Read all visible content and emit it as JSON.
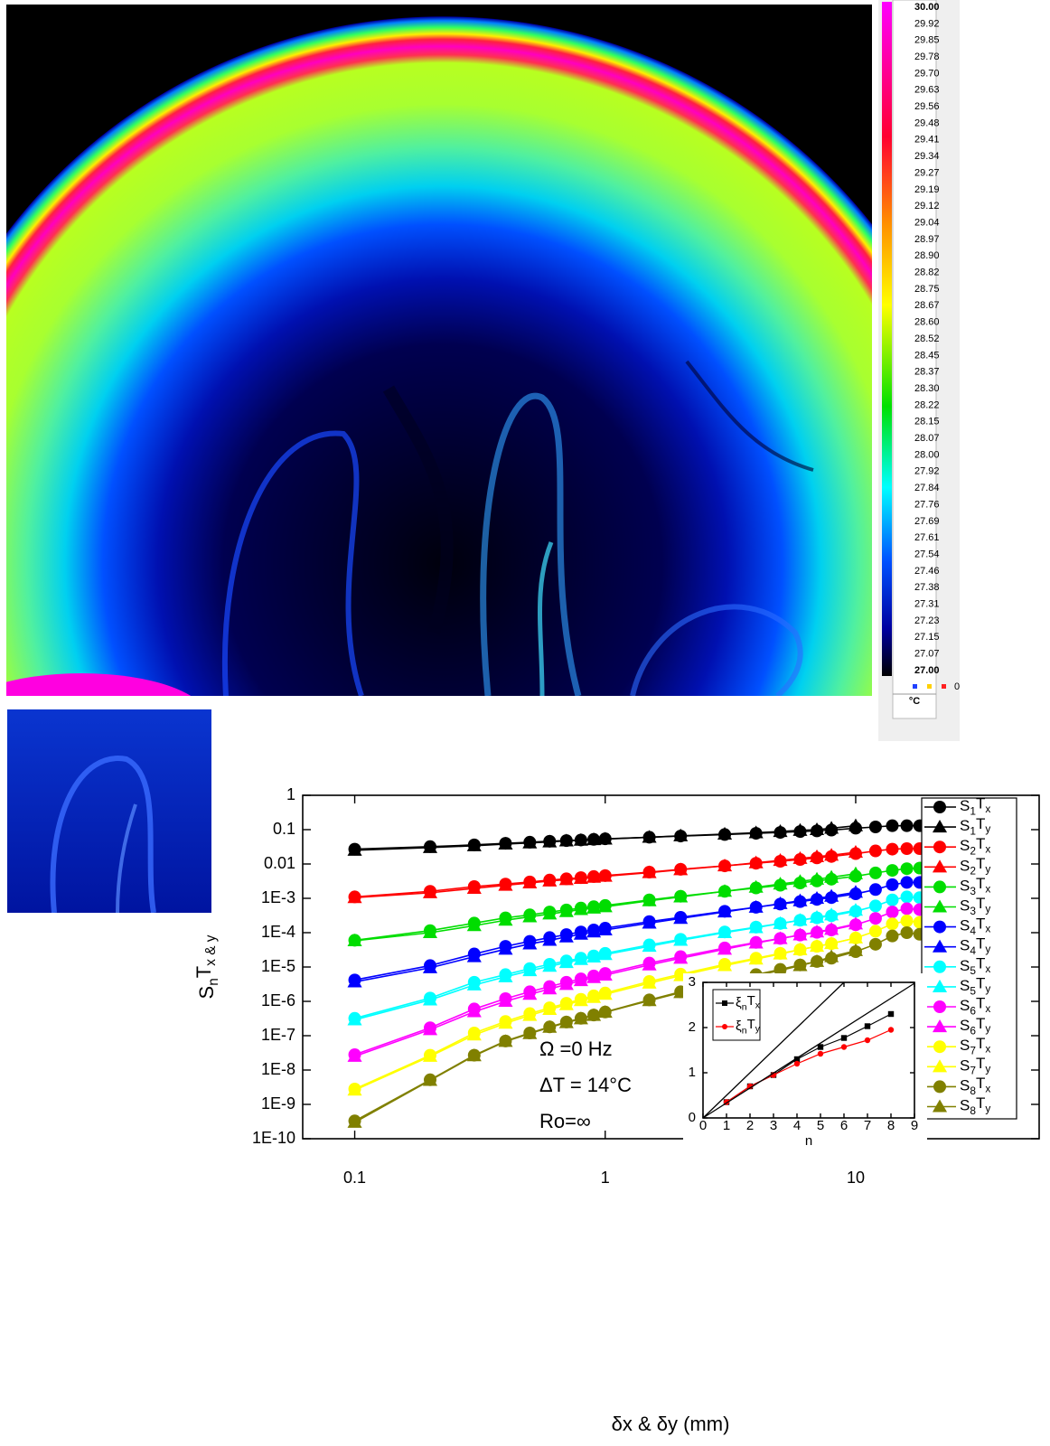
{
  "thermal_image": {
    "colorbar": {
      "labels": [
        "30.00",
        "29.92",
        "29.85",
        "29.78",
        "29.70",
        "29.63",
        "29.56",
        "29.48",
        "29.41",
        "29.34",
        "29.27",
        "29.19",
        "29.12",
        "29.04",
        "28.97",
        "28.90",
        "28.82",
        "28.75",
        "28.67",
        "28.60",
        "28.52",
        "28.45",
        "28.37",
        "28.30",
        "28.22",
        "28.15",
        "28.07",
        "28.00",
        "27.92",
        "27.84",
        "27.76",
        "27.69",
        "27.61",
        "27.54",
        "27.46",
        "27.38",
        "27.31",
        "27.23",
        "27.15",
        "27.07",
        "27.00"
      ],
      "zero_label": "0",
      "unit": "°C"
    }
  },
  "chart_data": [
    {
      "type": "line",
      "xlabel": "δx & δy (mm)",
      "ylabel": "SnTx & y",
      "xscale": "log",
      "yscale": "log",
      "xlim": [
        0.062,
        54
      ],
      "ylim": [
        1e-10,
        1
      ],
      "xticks": [
        0.1,
        1,
        10
      ],
      "yticks": [
        1,
        0.1,
        0.01,
        {
          "value": 0.001,
          "label": "1E-3"
        },
        {
          "value": 0.0001,
          "label": "1E-4"
        },
        {
          "value": 1e-05,
          "label": "1E-5"
        },
        {
          "value": 1e-06,
          "label": "1E-6"
        },
        {
          "value": 1e-07,
          "label": "1E-7"
        },
        {
          "value": 1e-08,
          "label": "1E-8"
        },
        {
          "value": 1e-09,
          "label": "1E-9"
        },
        {
          "value": 1e-10,
          "label": "1E-10"
        }
      ],
      "annotations": [
        "Ω =0 Hz",
        "ΔT = 14°C",
        "Ro=∞"
      ],
      "legend": "right",
      "x": [
        0.1,
        0.2,
        0.3,
        0.4,
        0.5,
        0.6,
        0.7,
        0.8,
        0.9,
        1,
        1.5,
        2,
        3,
        4,
        5,
        6,
        7,
        8,
        10,
        12,
        14,
        16,
        18,
        20
      ],
      "series": [
        {
          "name": "S1Tx",
          "color": "#000000",
          "marker": "circle",
          "values": [
            0.027,
            0.032,
            0.036,
            0.04,
            0.043,
            0.046,
            0.048,
            0.05,
            0.052,
            0.054,
            0.06,
            0.065,
            0.072,
            0.078,
            0.083,
            0.088,
            0.092,
            0.097,
            0.11,
            0.12,
            0.13,
            0.13,
            0.13,
            0.125
          ]
        },
        {
          "name": "S1Ty",
          "color": "#000000",
          "marker": "triangle",
          "values": [
            0.025,
            0.03,
            0.034,
            0.038,
            0.041,
            0.044,
            0.047,
            0.049,
            0.051,
            0.053,
            0.06,
            0.066,
            0.074,
            0.081,
            0.088,
            0.095,
            0.1,
            0.11,
            0.13,
            null,
            null,
            null,
            null,
            null
          ]
        },
        {
          "name": "S2Tx",
          "color": "#ff0000",
          "marker": "circle",
          "values": [
            0.0011,
            0.0016,
            0.0022,
            0.0026,
            0.003,
            0.0034,
            0.0037,
            0.004,
            0.0043,
            0.0046,
            0.0058,
            0.007,
            0.0088,
            0.0105,
            0.012,
            0.0135,
            0.015,
            0.0165,
            0.02,
            0.024,
            0.027,
            0.028,
            0.028,
            0.027
          ]
        },
        {
          "name": "S2Ty",
          "color": "#ff0000",
          "marker": "triangle",
          "values": [
            0.00105,
            0.00145,
            0.00195,
            0.0024,
            0.0028,
            0.0032,
            0.0035,
            0.0038,
            0.0041,
            0.0044,
            0.0056,
            0.0068,
            0.0088,
            0.0108,
            0.0127,
            0.0145,
            0.0163,
            0.018,
            0.022,
            null,
            null,
            null,
            null,
            null
          ]
        },
        {
          "name": "S3Tx",
          "color": "#00dd00",
          "marker": "circle",
          "values": [
            6e-05,
            0.000115,
            0.00019,
            0.00027,
            0.00033,
            0.0004,
            0.00046,
            0.00052,
            0.00057,
            0.00062,
            0.0009,
            0.00115,
            0.0016,
            0.002,
            0.0024,
            0.0028,
            0.0032,
            0.0036,
            0.0044,
            0.0055,
            0.0065,
            0.0073,
            0.0076,
            0.0073
          ]
        },
        {
          "name": "S3Ty",
          "color": "#00dd00",
          "marker": "triangle",
          "values": [
            5.8e-05,
            0.0001,
            0.00016,
            0.00023,
            0.00029,
            0.00035,
            0.00041,
            0.00047,
            0.00052,
            0.00057,
            0.00085,
            0.0011,
            0.0016,
            0.0021,
            0.0026,
            0.0031,
            0.0036,
            0.0041,
            0.0052,
            null,
            null,
            null,
            null,
            null
          ]
        },
        {
          "name": "S4Tx",
          "color": "#0000ff",
          "marker": "circle",
          "values": [
            4.2e-06,
            1.1e-05,
            2.4e-05,
            4e-05,
            5.6e-05,
            7.2e-05,
            8.8e-05,
            0.000105,
            0.00012,
            0.000135,
            0.00021,
            0.00028,
            0.00042,
            0.00055,
            0.00068,
            0.0008,
            0.00093,
            0.00105,
            0.00135,
            0.0018,
            0.0025,
            0.0029,
            0.0029,
            0.0024
          ]
        },
        {
          "name": "S4Ty",
          "color": "#0000ff",
          "marker": "triangle",
          "values": [
            3.7e-06,
            9.5e-06,
            2e-05,
            3.3e-05,
            4.7e-05,
            6e-05,
            7.5e-05,
            9e-05,
            0.000105,
            0.00012,
            0.00019,
            0.00026,
            0.0004,
            0.00055,
            0.0007,
            0.00085,
            0.001,
            0.00115,
            0.0015,
            null,
            null,
            null,
            null,
            null
          ]
        },
        {
          "name": "S5Tx",
          "color": "#00ffff",
          "marker": "circle",
          "values": [
            3.2e-07,
            1.25e-06,
            3.6e-06,
            6e-06,
            9e-06,
            1.2e-05,
            1.5e-05,
            1.8e-05,
            2.1e-05,
            2.5e-05,
            4.4e-05,
            6.4e-05,
            0.000105,
            0.000145,
            0.000185,
            0.00023,
            0.00027,
            0.00031,
            0.00042,
            0.0006,
            0.0009,
            0.0011,
            0.00105,
            0.0008
          ]
        },
        {
          "name": "S5Ty",
          "color": "#00ffff",
          "marker": "triangle",
          "values": [
            2.9e-07,
            1.1e-06,
            3e-06,
            5.2e-06,
            7.8e-06,
            1.05e-05,
            1.35e-05,
            1.65e-05,
            1.95e-05,
            2.3e-05,
            4e-05,
            6e-05,
            0.0001,
            0.00014,
            0.000185,
            0.00023,
            0.00028,
            0.00033,
            0.00045,
            null,
            null,
            null,
            null,
            null
          ]
        },
        {
          "name": "S6Tx",
          "color": "#ff00ff",
          "marker": "circle",
          "values": [
            2.8e-08,
            1.7e-07,
            6e-07,
            1.2e-06,
            1.9e-06,
            2.7e-06,
            3.6e-06,
            4.5e-06,
            5.5e-06,
            6.5e-06,
            1.3e-05,
            2e-05,
            3.6e-05,
            5.2e-05,
            6.8e-05,
            8.5e-05,
            0.000102,
            0.00012,
            0.00017,
            0.00026,
            0.0004,
            0.0005,
            0.00047,
            0.00034
          ]
        },
        {
          "name": "S6Ty",
          "color": "#ff00ff",
          "marker": "triangle",
          "values": [
            2.5e-08,
            1.5e-07,
            5e-07,
            1e-06,
            1.6e-06,
            2.3e-06,
            3.1e-06,
            4e-06,
            4.9e-06,
            5.8e-06,
            1.15e-05,
            1.8e-05,
            3.3e-05,
            5e-05,
            6.7e-05,
            8.6e-05,
            0.000105,
            0.000125,
            0.00018,
            null,
            null,
            null,
            null,
            null
          ]
        },
        {
          "name": "S7Tx",
          "color": "#ffff00",
          "marker": "circle",
          "values": [
            2.8e-09,
            2.7e-08,
            1.2e-07,
            2.6e-07,
            4.4e-07,
            6.5e-07,
            8.8e-07,
            1.15e-06,
            1.45e-06,
            1.75e-06,
            3.8e-06,
            6.2e-06,
            1.2e-05,
            1.8e-05,
            2.5e-05,
            3.2e-05,
            4e-05,
            4.8e-05,
            7e-05,
            0.00011,
            0.00018,
            0.00022,
            0.0002,
            0.00014
          ]
        },
        {
          "name": "S7Ty",
          "color": "#ffff00",
          "marker": "triangle",
          "values": [
            2.6e-09,
            2.5e-08,
            1.05e-07,
            2.3e-07,
            3.9e-07,
            5.8e-07,
            8e-07,
            1.05e-06,
            1.3e-06,
            1.6e-06,
            3.4e-06,
            5.6e-06,
            1.1e-05,
            1.7e-05,
            2.4e-05,
            3.2e-05,
            4e-05,
            4.8e-05,
            7e-05,
            null,
            null,
            null,
            null,
            null
          ]
        },
        {
          "name": "S8Tx",
          "color": "#808000",
          "marker": "circle",
          "values": [
            3.3e-10,
            5.2e-09,
            2.7e-08,
            7e-08,
            1.2e-07,
            1.8e-07,
            2.5e-07,
            3.2e-07,
            4e-07,
            4.9e-07,
            1.1e-06,
            1.9e-06,
            3.8e-06,
            6e-06,
            8.5e-06,
            1.15e-05,
            1.45e-05,
            1.8e-05,
            2.8e-05,
            4.6e-05,
            8e-05,
            0.0001,
            9e-05,
            5.5e-05
          ]
        },
        {
          "name": "S8Ty",
          "color": "#808000",
          "marker": "triangle",
          "values": [
            3e-10,
            5e-09,
            2.6e-08,
            6.8e-08,
            1.15e-07,
            1.75e-07,
            2.4e-07,
            3.1e-07,
            3.9e-07,
            4.8e-07,
            1.05e-06,
            1.8e-06,
            3.5e-06,
            5.6e-06,
            8e-06,
            1.1e-05,
            1.45e-05,
            2e-05,
            3e-05,
            null,
            null,
            null,
            null,
            null
          ]
        }
      ]
    },
    {
      "type": "line",
      "xlabel": "n",
      "xlim": [
        0,
        9
      ],
      "ylim": [
        0,
        3
      ],
      "xticks": [
        0,
        1,
        2,
        3,
        4,
        5,
        6,
        7,
        8,
        9
      ],
      "yticks": [
        0,
        1,
        2,
        3
      ],
      "legend": "upper left",
      "x": [
        1,
        2,
        3,
        4,
        5,
        6,
        7,
        8
      ],
      "series": [
        {
          "name": "ξnTx",
          "color": "#000000",
          "marker": "square",
          "values": [
            0.35,
            0.7,
            0.95,
            1.3,
            1.57,
            1.77,
            2.03,
            2.3
          ]
        },
        {
          "name": "ξnTy",
          "color": "#ff0000",
          "marker": "circle",
          "values": [
            0.35,
            0.7,
            0.95,
            1.2,
            1.42,
            1.57,
            1.72,
            1.95
          ]
        }
      ]
    }
  ]
}
